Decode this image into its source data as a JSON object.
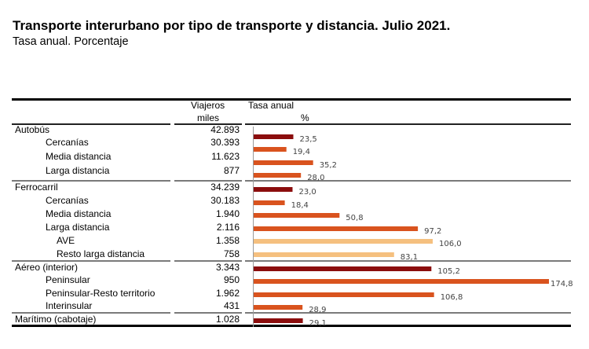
{
  "title": "Transporte interurbano por tipo de transporte y distancia. Julio 2021.",
  "subtitle": "Tasa anual. Porcentaje",
  "headers": {
    "viajeros_line1": "Viajeros",
    "viajeros_line2": "miles",
    "tasa_line1": "Tasa anual",
    "tasa_line2": "%"
  },
  "colors": {
    "total": "#8b0d0d",
    "sub": "#d9531e",
    "subsub": "#f5c07f"
  },
  "rows": [
    {
      "label": "Autobús",
      "level": 0,
      "viajeros": "42.893",
      "tasa": null
    },
    {
      "label": "Cercanías",
      "level": 1,
      "viajeros": "30.393",
      "tasa": null
    },
    {
      "label": "Media distancia",
      "level": 1,
      "viajeros": "11.623",
      "tasa": null
    },
    {
      "label": "Larga distancia",
      "level": 1,
      "viajeros": "877",
      "tasa": null
    },
    {
      "label": "Ferrocarril",
      "level": 0,
      "viajeros": "34.239",
      "tasa": null
    },
    {
      "label": "Cercanías",
      "level": 1,
      "viajeros": "30.183",
      "tasa": null
    },
    {
      "label": "Media distancia",
      "level": 1,
      "viajeros": "1.940",
      "tasa": null
    },
    {
      "label": "Larga distancia",
      "level": 1,
      "viajeros": "2.116",
      "tasa": null
    },
    {
      "label": "AVE",
      "level": 2,
      "viajeros": "1.358",
      "tasa": null
    },
    {
      "label": "Resto larga distancia",
      "level": 2,
      "viajeros": "758",
      "tasa": null
    },
    {
      "label": "Aéreo (interior)",
      "level": 0,
      "viajeros": "3.343",
      "tasa": null
    },
    {
      "label": "Peninsular",
      "level": 1,
      "viajeros": "950",
      "tasa": null
    },
    {
      "label": "Peninsular-Resto territorio",
      "level": 1,
      "viajeros": "1.962",
      "tasa": null
    },
    {
      "label": "Interinsular",
      "level": 1,
      "viajeros": "431",
      "tasa": null
    },
    {
      "label": "Marítimo (cabotaje)",
      "level": 0,
      "viajeros": "1.028",
      "tasa": null
    }
  ],
  "chart_data": {
    "type": "bar",
    "orientation": "horizontal",
    "title": "Transporte interurbano por tipo de transporte y distancia. Julio 2021.",
    "subtitle": "Tasa anual. Porcentaje",
    "xlabel": "Tasa anual %",
    "ylabel": "",
    "xlim": [
      0,
      175
    ],
    "grid": false,
    "categories": [
      "Autobús - Cercanías",
      "Autobús - Media distancia",
      "Autobús - Larga distancia",
      "Autobús",
      "Ferrocarril",
      "Ferrocarril - Cercanías",
      "Ferrocarril - Media distancia",
      "Ferrocarril - Larga distancia",
      "Ferrocarril - AVE",
      "Ferrocarril - Resto larga distancia",
      "Aéreo (interior)",
      "Aéreo - Peninsular",
      "Aéreo - Peninsular-Resto territorio",
      "Aéreo - Interinsular",
      "Marítimo (cabotaje)"
    ],
    "bars": [
      {
        "value": 23.5,
        "label": "23,5",
        "level": 0
      },
      {
        "value": 19.4,
        "label": "19,4",
        "level": 1
      },
      {
        "value": 35.2,
        "label": "35,2",
        "level": 1
      },
      {
        "value": 28.0,
        "label": "28,0",
        "level": 1
      },
      {
        "value": 23.0,
        "label": "23,0",
        "level": 0
      },
      {
        "value": 18.4,
        "label": "18,4",
        "level": 1
      },
      {
        "value": 50.8,
        "label": "50,8",
        "level": 1
      },
      {
        "value": 97.2,
        "label": "97,2",
        "level": 1
      },
      {
        "value": 106.0,
        "label": "106,0",
        "level": 2
      },
      {
        "value": 83.1,
        "label": "83,1",
        "level": 2
      },
      {
        "value": 105.2,
        "label": "105,2",
        "level": 0
      },
      {
        "value": 174.8,
        "label": "174,8",
        "level": 1
      },
      {
        "value": 106.8,
        "label": "106,8",
        "level": 1
      },
      {
        "value": 28.9,
        "label": "28,9",
        "level": 1
      },
      {
        "value": 29.1,
        "label": "29,1",
        "level": 0
      }
    ]
  }
}
